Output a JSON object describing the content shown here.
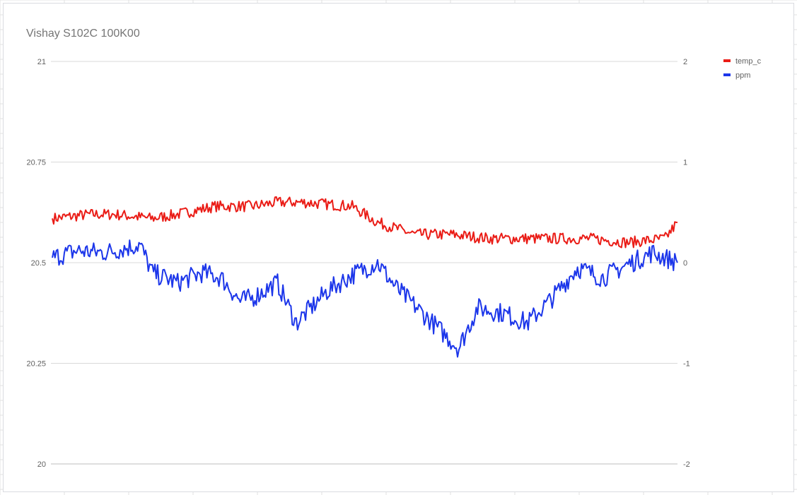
{
  "chart_data": {
    "type": "line",
    "title": "Vishay S102C 100K00",
    "xlabel": "",
    "ylabel": "",
    "ylim": [
      20,
      21
    ],
    "y2lim": [
      -2,
      2
    ],
    "grid": true,
    "legend_position": "right",
    "y_ticks": [
      "20",
      "20.25",
      "20.5",
      "20.75",
      "21"
    ],
    "y2_ticks": [
      "-2",
      "-1",
      "0",
      "1",
      "2"
    ],
    "series": [
      {
        "name": "temp_c",
        "axis": "left",
        "color": "#ea1c16",
        "trend": [
          [
            0,
            20.61
          ],
          [
            0.06,
            20.62
          ],
          [
            0.1,
            20.62
          ],
          [
            0.16,
            20.61
          ],
          [
            0.2,
            20.62
          ],
          [
            0.26,
            20.64
          ],
          [
            0.32,
            20.64
          ],
          [
            0.36,
            20.65
          ],
          [
            0.4,
            20.65
          ],
          [
            0.48,
            20.64
          ],
          [
            0.52,
            20.6
          ],
          [
            0.58,
            20.57
          ],
          [
            0.64,
            20.57
          ],
          [
            0.7,
            20.56
          ],
          [
            0.78,
            20.56
          ],
          [
            0.86,
            20.56
          ],
          [
            0.92,
            20.55
          ],
          [
            0.98,
            20.56
          ],
          [
            1.0,
            20.6
          ]
        ],
        "noise": 0.014
      },
      {
        "name": "ppm",
        "axis": "right",
        "color": "#1c36ea",
        "trend": [
          [
            0,
            0.05
          ],
          [
            0.04,
            0.12
          ],
          [
            0.08,
            0.1
          ],
          [
            0.1,
            0.12
          ],
          [
            0.14,
            0.18
          ],
          [
            0.16,
            -0.1
          ],
          [
            0.2,
            -0.2
          ],
          [
            0.24,
            -0.1
          ],
          [
            0.27,
            -0.15
          ],
          [
            0.3,
            -0.38
          ],
          [
            0.32,
            -0.35
          ],
          [
            0.36,
            -0.2
          ],
          [
            0.39,
            -0.6
          ],
          [
            0.44,
            -0.28
          ],
          [
            0.48,
            -0.12
          ],
          [
            0.52,
            0
          ],
          [
            0.55,
            -0.25
          ],
          [
            0.6,
            -0.55
          ],
          [
            0.65,
            -0.85
          ],
          [
            0.68,
            -0.45
          ],
          [
            0.72,
            -0.5
          ],
          [
            0.76,
            -0.6
          ],
          [
            0.8,
            -0.35
          ],
          [
            0.84,
            -0.05
          ],
          [
            0.88,
            -0.15
          ],
          [
            0.92,
            -0.02
          ],
          [
            0.96,
            0.1
          ],
          [
            1.0,
            0.0
          ]
        ],
        "noise": 0.1
      }
    ],
    "points_count": 470
  }
}
